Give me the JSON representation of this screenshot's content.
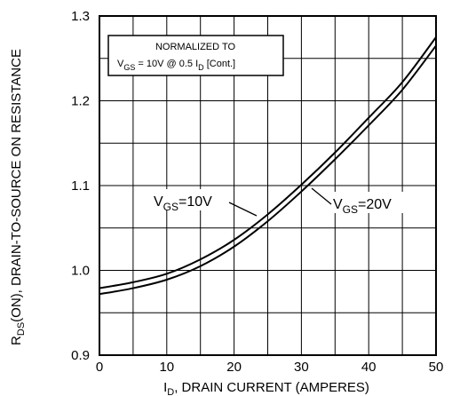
{
  "chart_data": {
    "type": "line",
    "xlim": [
      0,
      50
    ],
    "ylim": [
      0.9,
      1.3
    ],
    "x_ticks": [
      "0",
      "10",
      "20",
      "30",
      "40",
      "50"
    ],
    "y_ticks": [
      "0.9",
      "1.0",
      "1.1",
      "1.2",
      "1.3"
    ],
    "grid": true,
    "xlabel": {
      "pre": "I",
      "sub": "D",
      "post": ", DRAIN CURRENT (AMPERES)"
    },
    "ylabel": {
      "pre": "R",
      "sub": "DS",
      "post": "(ON), DRAIN-TO-SOURCE ON RESISTANCE"
    },
    "annotation": {
      "line1": "NORMALIZED TO",
      "line2_pre": "V",
      "line2_sub": "GS",
      "line2_mid": " = 10V  @  0.5  I",
      "line2_sub2": "D",
      "line2_post": " [Cont.]"
    },
    "series": [
      {
        "label_pre": "V",
        "label_sub": "GS",
        "label_post": "=10V",
        "x": [
          0,
          5,
          10,
          15,
          20,
          25,
          30,
          35,
          40,
          45,
          50
        ],
        "y": [
          0.979,
          0.986,
          0.996,
          1.013,
          1.036,
          1.066,
          1.101,
          1.139,
          1.18,
          1.222,
          1.275
        ]
      },
      {
        "label_pre": "V",
        "label_sub": "GS",
        "label_post": "=20V",
        "x": [
          0,
          5,
          10,
          15,
          20,
          25,
          30,
          35,
          40,
          45,
          50
        ],
        "y": [
          0.972,
          0.979,
          0.989,
          1.005,
          1.028,
          1.058,
          1.093,
          1.131,
          1.171,
          1.213,
          1.265
        ]
      }
    ]
  }
}
